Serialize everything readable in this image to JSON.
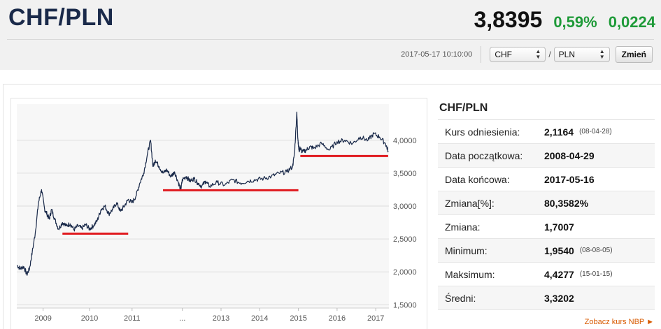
{
  "header": {
    "title": "CHF/PLN",
    "rate": "3,8395",
    "change_pct": "0,59%",
    "change_abs": "0,0224",
    "timestamp": "2017-05-17 10:10:00",
    "base_currency": "CHF",
    "separator": "/",
    "quote_currency": "PLN",
    "change_button": "Zmień"
  },
  "colors": {
    "positive": "#1e9a38",
    "line": "#1a2a4a",
    "level_marker": "#e0191e",
    "link": "#d85a00"
  },
  "stats": {
    "title": "CHF/PLN",
    "rows": [
      {
        "label": "Kurs odniesienia:",
        "value": "2,1164",
        "sub": "(08-04-28)"
      },
      {
        "label": "Data początkowa:",
        "value": "2008-04-29",
        "sub": ""
      },
      {
        "label": "Data końcowa:",
        "value": "2017-05-16",
        "sub": ""
      },
      {
        "label": "Zmiana[%]:",
        "value": "80,3582%",
        "sub": ""
      },
      {
        "label": "Zmiana:",
        "value": "1,7007",
        "sub": ""
      },
      {
        "label": "Minimum:",
        "value": "1,9540",
        "sub": "(08-08-05)"
      },
      {
        "label": "Maksimum:",
        "value": "4,4277",
        "sub": "(15-01-15)"
      },
      {
        "label": "Średni:",
        "value": "3,3202",
        "sub": ""
      }
    ],
    "link": "Zobacz kurs NBP ►"
  },
  "chart_data": {
    "type": "line",
    "x_ticks": [
      {
        "label": "2009",
        "x": 2009.0
      },
      {
        "label": "2010",
        "x": 2010.2
      },
      {
        "label": "2011",
        "x": 2011.3
      },
      {
        "label": "...",
        "x": 2012.6
      },
      {
        "label": "2013",
        "x": 2013.6
      },
      {
        "label": "2014",
        "x": 2014.6
      },
      {
        "label": "2015",
        "x": 2015.6
      },
      {
        "label": "2016",
        "x": 2016.6
      },
      {
        "label": "2017",
        "x": 2017.6
      }
    ],
    "y_ticks": [
      "4,0000",
      "3,5000",
      "3,0000",
      "2,5000",
      "2,0000",
      "1,5000"
    ],
    "y_tick_values": [
      4.0,
      3.5,
      3.0,
      2.5,
      2.0,
      1.5
    ],
    "xlim": [
      2008.32,
      2017.94
    ],
    "ylim": [
      1.45,
      4.55
    ],
    "series": [
      {
        "x": [
          2008.33,
          2008.4,
          2008.5,
          2008.58,
          2008.65,
          2008.72,
          2008.8,
          2008.88,
          2008.96,
          2009.04,
          2009.1,
          2009.16,
          2009.22,
          2009.3,
          2009.4,
          2009.5,
          2009.6,
          2009.7,
          2009.8,
          2009.9,
          2010.0,
          2010.1,
          2010.2,
          2010.3,
          2010.4,
          2010.5,
          2010.6,
          2010.7,
          2010.8,
          2010.9,
          2011.0,
          2011.1,
          2011.2,
          2011.3,
          2011.4,
          2011.5,
          2011.6,
          2011.7,
          2011.78,
          2011.84,
          2011.9,
          2012.0,
          2012.1,
          2012.2,
          2012.3,
          2012.4,
          2012.5,
          2012.56,
          2012.6,
          2012.7,
          2012.8,
          2012.9,
          2013.0,
          2013.1,
          2013.2,
          2013.3,
          2013.5,
          2013.7,
          2013.9,
          2014.1,
          2014.3,
          2014.5,
          2014.7,
          2014.9,
          2015.1,
          2015.3,
          2015.45,
          2015.5,
          2015.56,
          2015.58,
          2015.6,
          2015.62,
          2015.65,
          2015.7,
          2015.8,
          2015.9,
          2016.0,
          2016.2,
          2016.4,
          2016.6,
          2016.8,
          2017.0,
          2017.2,
          2017.4,
          2017.55,
          2017.7,
          2017.85,
          2017.92
        ],
        "y": [
          2.1,
          2.05,
          2.08,
          1.96,
          2.05,
          2.3,
          2.6,
          3.05,
          3.25,
          2.95,
          2.88,
          2.8,
          2.95,
          2.8,
          2.65,
          2.75,
          2.7,
          2.73,
          2.64,
          2.7,
          2.66,
          2.72,
          2.65,
          2.7,
          2.78,
          2.95,
          3.0,
          2.88,
          2.95,
          3.05,
          2.92,
          3.0,
          3.1,
          3.05,
          3.15,
          3.35,
          3.5,
          3.8,
          4.0,
          3.6,
          3.7,
          3.6,
          3.5,
          3.55,
          3.45,
          3.52,
          3.35,
          3.25,
          3.4,
          3.45,
          3.38,
          3.42,
          3.35,
          3.3,
          3.38,
          3.3,
          3.36,
          3.32,
          3.4,
          3.35,
          3.38,
          3.4,
          3.42,
          3.45,
          3.5,
          3.52,
          3.6,
          3.8,
          4.43,
          4.1,
          3.92,
          3.85,
          3.88,
          3.82,
          3.85,
          3.9,
          3.88,
          3.95,
          3.85,
          3.98,
          4.0,
          3.95,
          4.05,
          4.0,
          4.1,
          4.05,
          3.95,
          3.84
        ]
      }
    ],
    "level_markers": [
      {
        "x_start": 2009.5,
        "x_end": 2011.2,
        "y": 2.58
      },
      {
        "x_start": 2012.1,
        "x_end": 2015.6,
        "y": 3.24
      },
      {
        "x_start": 2015.65,
        "x_end": 2017.92,
        "y": 3.76
      }
    ],
    "grid": true
  }
}
